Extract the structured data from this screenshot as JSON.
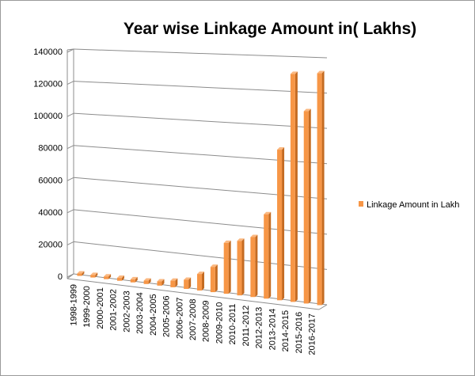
{
  "chart_data": {
    "type": "bar",
    "title": "Year wise Linkage Amount in( Lakhs)",
    "xlabel": "",
    "ylabel": "",
    "ylim": [
      0,
      140000
    ],
    "yticks": [
      0,
      20000,
      40000,
      60000,
      80000,
      100000,
      120000,
      140000
    ],
    "grid": true,
    "legend_position": "right",
    "categories": [
      "1998-1999",
      "1999-2000",
      "2000-2001",
      "2001-2002",
      "2002-2003",
      "2003-2004",
      "2004-2005",
      "2005-2006",
      "2006-2007",
      "2007-2008",
      "2008-2009",
      "2009-2010",
      "2010-2011",
      "2011-2012",
      "2012-2013",
      "2013-2014",
      "2014-2015",
      "2015-2016",
      "2016-2017"
    ],
    "series": [
      {
        "name": "Linkage Amount in Lakh",
        "color": "#f79646",
        "values": [
          500,
          600,
          700,
          800,
          900,
          1100,
          1600,
          3000,
          4500,
          8900,
          14000,
          29000,
          31000,
          34000,
          48000,
          86000,
          130000,
          109000,
          131000
        ]
      }
    ]
  }
}
